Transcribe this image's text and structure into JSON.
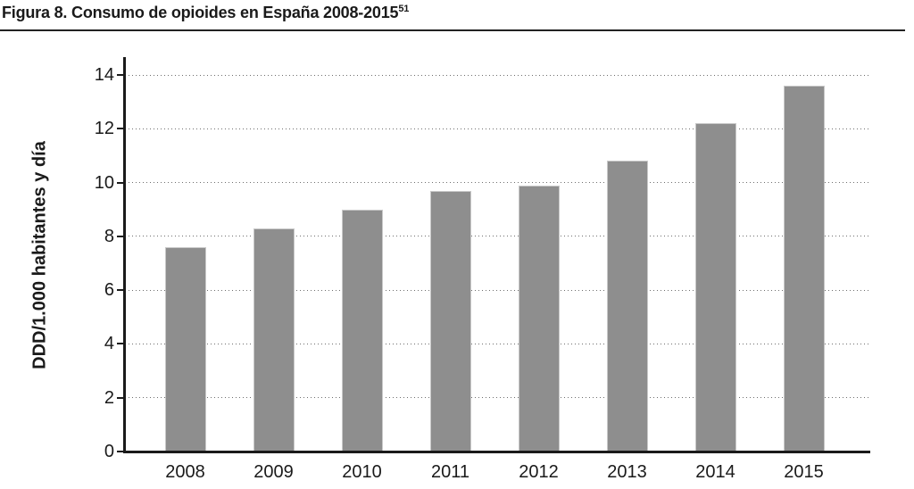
{
  "title": {
    "text": "Figura 8. Consumo de opioides en España 2008-2015",
    "superscript": "51"
  },
  "chart_data": {
    "type": "bar",
    "categories": [
      "2008",
      "2009",
      "2010",
      "2011",
      "2012",
      "2013",
      "2014",
      "2015"
    ],
    "values": [
      7.6,
      8.3,
      9.0,
      9.7,
      9.9,
      10.8,
      12.2,
      13.6
    ],
    "title": "Figura 8. Consumo de opioides en España 2008-2015",
    "title_superscript": "51",
    "xlabel": "",
    "ylabel": "DDD/1.000 habitantes y día",
    "ylim": [
      0,
      14
    ],
    "yticks": [
      0,
      2,
      4,
      6,
      8,
      10,
      12,
      14
    ],
    "grid": "horizontal-dotted",
    "legend_position": "none",
    "bar_color": "#8e8e8e",
    "bar_border_color": "#c9c9c9",
    "axis_color": "#1a1a1a",
    "gridline_color": "#6e6e6e"
  }
}
